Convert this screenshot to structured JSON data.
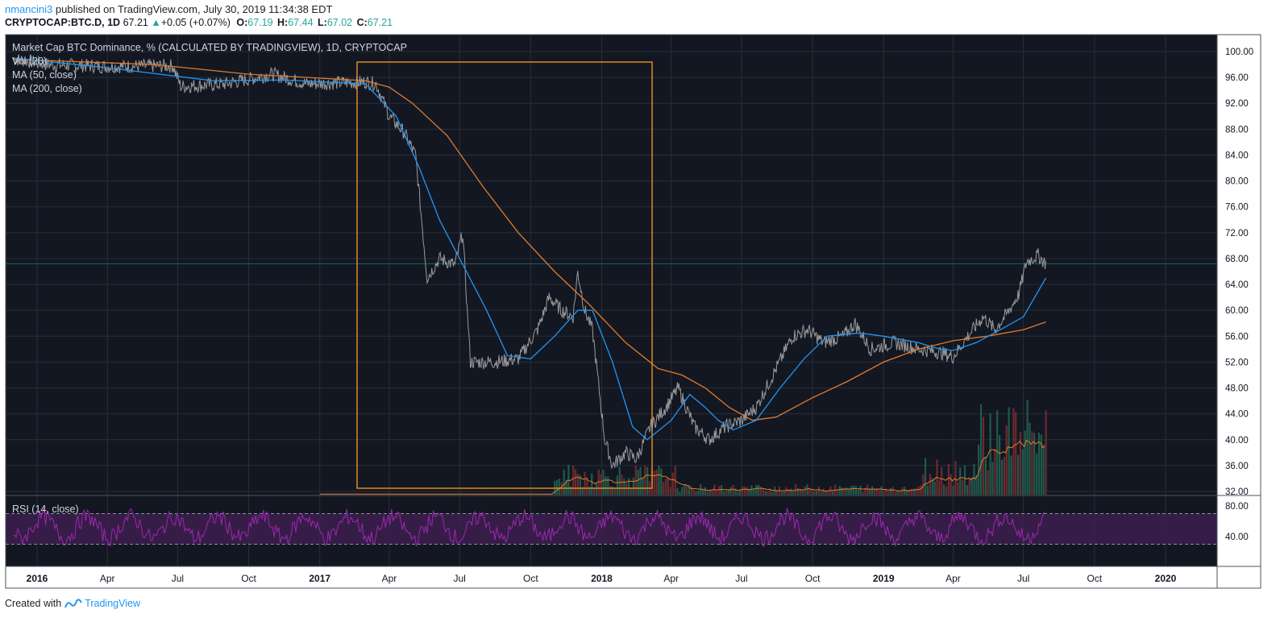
{
  "header": {
    "author": "nmancini3",
    "published_text": "published on TradingView.com, July 30, 2019 11:34:38 EDT",
    "symbol": "CRYPTOCAP:BTC.D",
    "interval": "1D",
    "last": "67.21",
    "change": "+0.05 (+0.07%)",
    "open_label": "O:",
    "open": "67.19",
    "high_label": "H:",
    "high": "67.44",
    "low_label": "L:",
    "low": "67.02",
    "close_label": "C:",
    "close": "67.21"
  },
  "legend": {
    "title": "Market Cap BTC Dominance, % (CALCULATED BY TRADINGVIEW), 1D, CRYPTOCAP",
    "vol": "Vol (20)",
    "ma50": "MA (50, close)",
    "ma200": "MA (200, close)",
    "rsi": "RSI (14, close)"
  },
  "footer": {
    "created_with": "Created with",
    "brand": "TradingView"
  },
  "colors": {
    "background": "#131722",
    "grid": "#2a2e39",
    "price": "#9a9a9a",
    "ma50": "#2196f3",
    "ma200": "#e07b2a",
    "box": "#e08a1e",
    "rsi_line": "#9c27b0",
    "rsi_band": "#3d1f4d",
    "vol_up": "#1f5a4a",
    "vol_down": "#6b2a2e",
    "price_tag": "#26a69a"
  },
  "chart_data": {
    "type": "line",
    "x_ticks": [
      "2016",
      "Apr",
      "Jul",
      "Oct",
      "2017",
      "Apr",
      "Jul",
      "Oct",
      "2018",
      "Apr",
      "Jul",
      "Oct",
      "2019",
      "Apr",
      "Jul",
      "Oct",
      "2020"
    ],
    "y_ticks": [
      "100.00",
      "96.00",
      "92.00",
      "88.00",
      "84.00",
      "80.00",
      "76.00",
      "72.00",
      "68.00",
      "64.00",
      "60.00",
      "56.00",
      "52.00",
      "48.00",
      "44.00",
      "40.00",
      "36.00",
      "32.00"
    ],
    "ylim": [
      32,
      100
    ],
    "last_price_tag": "67.21",
    "rsi_ticks": [
      "80.00",
      "40.00"
    ],
    "rsi_levels": [
      70,
      30
    ],
    "series": [
      {
        "name": "BTC.D",
        "x": [
          "2015-12-01",
          "2016-01-15",
          "2016-04-01",
          "2016-06-25",
          "2016-07-05",
          "2016-09-01",
          "2016-11-01",
          "2016-12-15",
          "2017-02-01",
          "2017-03-01",
          "2017-03-15",
          "2017-04-01",
          "2017-04-20",
          "2017-05-05",
          "2017-05-20",
          "2017-06-05",
          "2017-06-25",
          "2017-07-05",
          "2017-07-15",
          "2017-08-15",
          "2017-09-15",
          "2017-10-10",
          "2017-10-25",
          "2017-11-10",
          "2017-11-25",
          "2017-12-01",
          "2017-12-10",
          "2017-12-20",
          "2018-01-05",
          "2018-01-15",
          "2018-02-01",
          "2018-02-15",
          "2018-03-05",
          "2018-03-25",
          "2018-04-10",
          "2018-05-01",
          "2018-05-20",
          "2018-06-10",
          "2018-07-01",
          "2018-07-20",
          "2018-08-15",
          "2018-09-05",
          "2018-09-25",
          "2018-10-15",
          "2018-11-10",
          "2018-11-25",
          "2018-12-15",
          "2019-01-15",
          "2019-02-15",
          "2019-03-15",
          "2019-04-01",
          "2019-04-20",
          "2019-05-10",
          "2019-05-25",
          "2019-06-10",
          "2019-06-25",
          "2019-07-05",
          "2019-07-20",
          "2019-07-30"
        ],
        "values": [
          98.9,
          98.0,
          97.7,
          97.8,
          94.6,
          95.0,
          96.5,
          95.0,
          95.2,
          95.3,
          95.0,
          90.0,
          87.5,
          84.0,
          65.0,
          68.0,
          67.0,
          72.0,
          52.0,
          52.0,
          52.5,
          57.0,
          62.0,
          60.0,
          59.0,
          66.0,
          60.0,
          57.0,
          40.0,
          36.0,
          38.0,
          37.0,
          42.0,
          45.0,
          48.0,
          42.0,
          40.0,
          42.0,
          43.0,
          45.0,
          51.0,
          56.0,
          57.0,
          55.0,
          56.0,
          58.0,
          54.0,
          55.0,
          54.0,
          53.5,
          52.8,
          56.0,
          59.0,
          57.0,
          59.5,
          62.5,
          67.5,
          68.5,
          67.2
        ]
      },
      {
        "name": "MA (50, close)",
        "x": [
          "2015-12-01",
          "2016-04-01",
          "2016-08-15",
          "2016-11-15",
          "2017-03-01",
          "2017-04-10",
          "2017-05-10",
          "2017-06-05",
          "2017-07-01",
          "2017-08-05",
          "2017-09-01",
          "2017-10-01",
          "2017-11-01",
          "2017-12-01",
          "2017-12-20",
          "2018-01-15",
          "2018-02-10",
          "2018-03-01",
          "2018-04-01",
          "2018-04-25",
          "2018-05-15",
          "2018-06-01",
          "2018-06-20",
          "2018-07-20",
          "2018-08-20",
          "2018-09-20",
          "2018-10-20",
          "2018-12-01",
          "2019-01-01",
          "2019-02-15",
          "2019-03-15",
          "2019-04-01",
          "2019-05-01",
          "2019-06-01",
          "2019-07-01",
          "2019-07-30"
        ],
        "values": [
          99.0,
          97.5,
          95.5,
          95.6,
          95.0,
          90.0,
          82.0,
          74.0,
          68.0,
          60.0,
          53.0,
          52.5,
          56.0,
          60.0,
          60.0,
          52.0,
          42.0,
          40.0,
          43.0,
          47.0,
          45.0,
          43.0,
          41.5,
          43.0,
          48.0,
          52.5,
          56.0,
          56.5,
          56.0,
          55.0,
          54.0,
          53.8,
          55.0,
          57.0,
          59.0,
          65.0
        ]
      },
      {
        "name": "MA (200, close)",
        "x": [
          "2015-12-01",
          "2016-06-01",
          "2016-10-01",
          "2017-03-01",
          "2017-04-01",
          "2017-05-01",
          "2017-06-15",
          "2017-08-01",
          "2017-09-15",
          "2017-11-01",
          "2017-12-15",
          "2018-02-01",
          "2018-03-15",
          "2018-04-15",
          "2018-05-15",
          "2018-06-15",
          "2018-07-15",
          "2018-08-15",
          "2018-10-01",
          "2018-11-15",
          "2019-01-01",
          "2019-02-15",
          "2019-04-01",
          "2019-05-15",
          "2019-07-01",
          "2019-07-30"
        ],
        "values": [
          98.8,
          98.0,
          96.5,
          95.5,
          94.5,
          92.0,
          87.0,
          79.0,
          72.0,
          66.0,
          61.0,
          55.0,
          51.0,
          50.0,
          48.0,
          45.0,
          43.0,
          43.5,
          46.5,
          49.0,
          52.0,
          54.0,
          55.3,
          56.0,
          57.0,
          58.2
        ]
      }
    ]
  }
}
